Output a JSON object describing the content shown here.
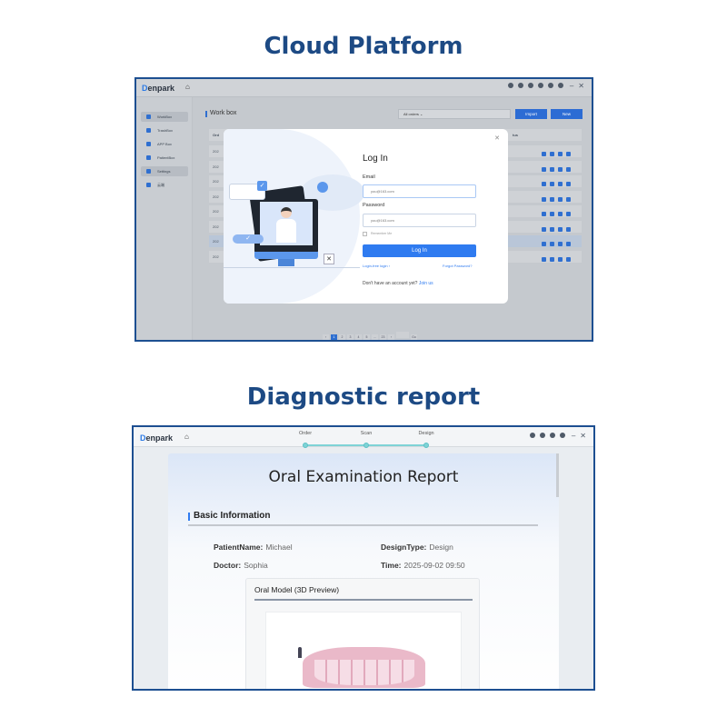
{
  "sections": {
    "cloud_title": "Cloud Platform",
    "report_title": "Diagnostic report"
  },
  "app": {
    "logo": "enpark",
    "logo_mark": "D"
  },
  "cloud": {
    "sidebar": [
      {
        "label": "WorkBox",
        "active": true
      },
      {
        "label": "TrashBox"
      },
      {
        "label": "APP Box"
      },
      {
        "label": "PatientBox"
      },
      {
        "label": "Settings",
        "active": true
      },
      {
        "label": "云端"
      }
    ],
    "page_title": "Work box",
    "filter": "All orders",
    "import_label": "Import",
    "new_label": "New",
    "col_first": "Ord",
    "col_last": "tus",
    "row_prefix": "202",
    "rows": 8,
    "pagination": [
      "1",
      "2",
      "3",
      "4",
      "5",
      "...",
      "23"
    ],
    "go": "Go",
    "login": {
      "title": "Log In",
      "email_label": "Email",
      "email_placeholder": "you@163.com",
      "password_label": "Password",
      "password_placeholder": "you@163.com",
      "remember": "Remember Me",
      "button": "Log In",
      "free_login": "Login-free login",
      "forgot": "Forgot Password?",
      "no_account": "Don't have an account yet?",
      "join": "Join us"
    },
    "accent": "#2f7bf0"
  },
  "report": {
    "steps": [
      "Order",
      "Scan",
      "Design"
    ],
    "title": "Oral Examination Report",
    "section": "Basic Information",
    "fields": {
      "patient_k": "PatientName:",
      "patient_v": "Michael",
      "design_k": "DesignType:",
      "design_v": "Design",
      "doctor_k": "Doctor:",
      "doctor_v": "Sophia",
      "time_k": "Time:",
      "time_v": "2025-09-02 09:50"
    },
    "model_title": "Oral Model (3D Preview)"
  }
}
